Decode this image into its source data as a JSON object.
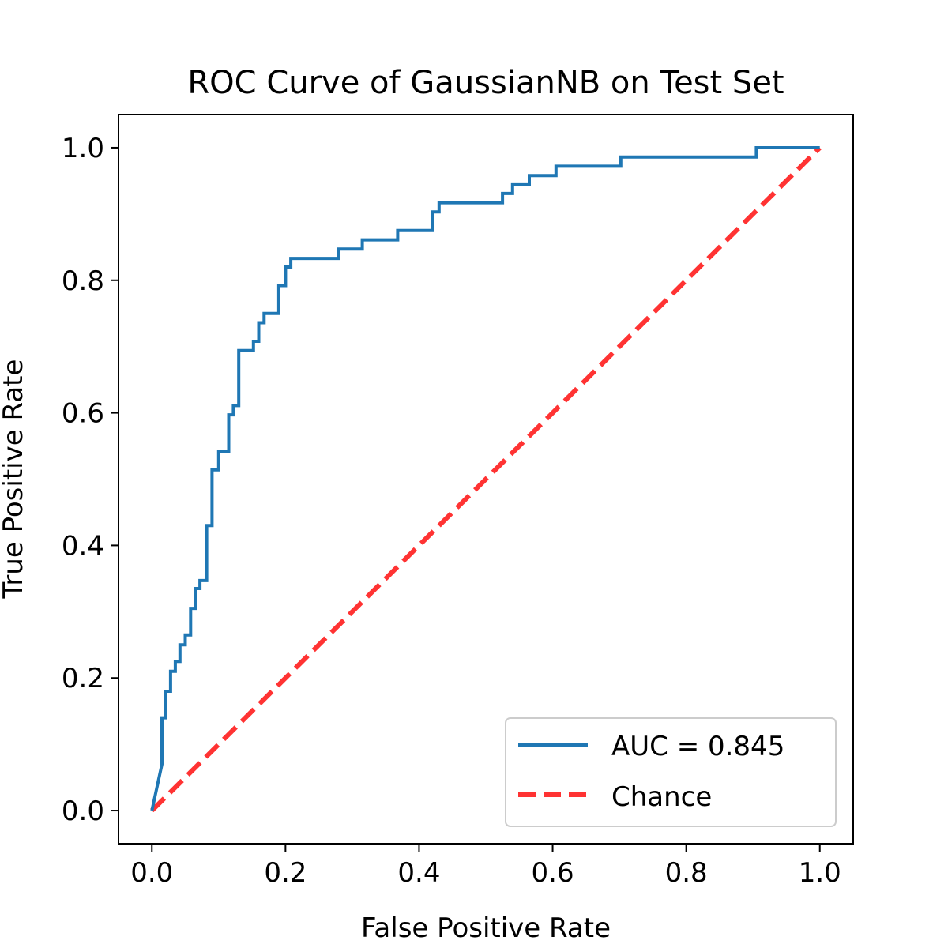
{
  "chart_data": {
    "type": "line",
    "title": "ROC Curve of GaussianNB on Test Set",
    "xlabel": "False Positive Rate",
    "ylabel": "True Positive Rate",
    "xlim": [
      -0.05,
      1.05
    ],
    "ylim": [
      -0.05,
      1.05
    ],
    "xticks": [
      0.0,
      0.2,
      0.4,
      0.6,
      0.8,
      1.0
    ],
    "yticks": [
      0.0,
      0.2,
      0.4,
      0.6,
      0.8,
      1.0
    ],
    "xtick_labels": [
      "0.0",
      "0.2",
      "0.4",
      "0.6",
      "0.8",
      "1.0"
    ],
    "ytick_labels": [
      "0.0",
      "0.2",
      "0.4",
      "0.6",
      "0.8",
      "1.0"
    ],
    "grid": false,
    "legend_position": "lower-right",
    "series": [
      {
        "name": "AUC = 0.845",
        "color": "#1f77b4",
        "style": "solid",
        "x": [
          0.0,
          0.015,
          0.015,
          0.02,
          0.02,
          0.028,
          0.028,
          0.035,
          0.035,
          0.042,
          0.042,
          0.05,
          0.05,
          0.058,
          0.058,
          0.065,
          0.065,
          0.072,
          0.072,
          0.082,
          0.082,
          0.09,
          0.09,
          0.1,
          0.1,
          0.115,
          0.115,
          0.122,
          0.122,
          0.13,
          0.13,
          0.152,
          0.152,
          0.16,
          0.16,
          0.168,
          0.168,
          0.19,
          0.19,
          0.2,
          0.2,
          0.208,
          0.208,
          0.28,
          0.28,
          0.315,
          0.315,
          0.368,
          0.368,
          0.42,
          0.42,
          0.43,
          0.43,
          0.525,
          0.525,
          0.54,
          0.54,
          0.565,
          0.565,
          0.605,
          0.605,
          0.702,
          0.702,
          0.905,
          0.905,
          1.0
        ],
        "y": [
          0.0,
          0.07,
          0.14,
          0.14,
          0.18,
          0.18,
          0.21,
          0.21,
          0.225,
          0.225,
          0.25,
          0.25,
          0.265,
          0.265,
          0.305,
          0.305,
          0.335,
          0.335,
          0.347,
          0.347,
          0.43,
          0.43,
          0.514,
          0.514,
          0.542,
          0.542,
          0.597,
          0.597,
          0.611,
          0.611,
          0.694,
          0.694,
          0.708,
          0.708,
          0.736,
          0.736,
          0.75,
          0.75,
          0.792,
          0.792,
          0.82,
          0.82,
          0.833,
          0.833,
          0.847,
          0.847,
          0.861,
          0.861,
          0.875,
          0.875,
          0.903,
          0.903,
          0.917,
          0.917,
          0.931,
          0.931,
          0.944,
          0.944,
          0.958,
          0.958,
          0.972,
          0.972,
          0.986,
          0.986,
          1.0,
          1.0
        ]
      },
      {
        "name": "Chance",
        "color": "#ff3333",
        "style": "dashed",
        "x": [
          0.0,
          1.0
        ],
        "y": [
          0.0,
          1.0
        ]
      }
    ]
  }
}
